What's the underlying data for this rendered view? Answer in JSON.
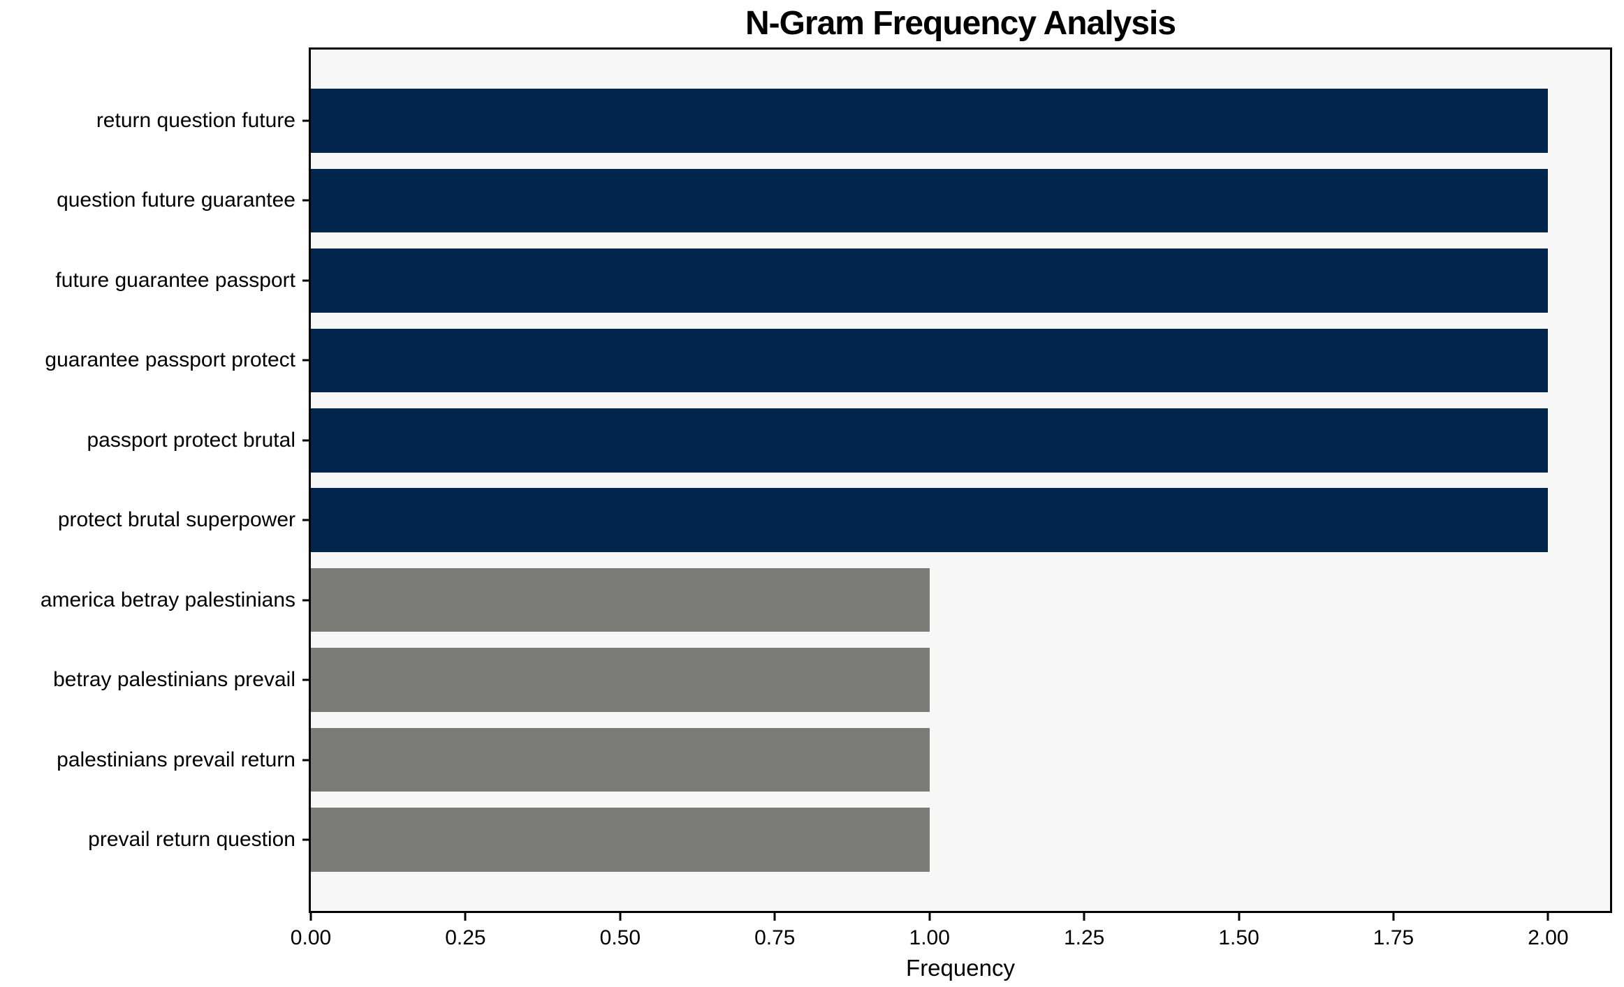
{
  "chart_data": {
    "type": "bar",
    "orientation": "horizontal",
    "title": "N-Gram Frequency Analysis",
    "xlabel": "Frequency",
    "ylabel": "",
    "categories": [
      "return question future",
      "question future guarantee",
      "future guarantee passport",
      "guarantee passport protect",
      "passport protect brutal",
      "protect brutal superpower",
      "america betray palestinians",
      "betray palestinians prevail",
      "palestinians prevail return",
      "prevail return question"
    ],
    "values": [
      2,
      2,
      2,
      2,
      2,
      2,
      1,
      1,
      1,
      1
    ],
    "bar_colors": [
      "#02254d",
      "#02254d",
      "#02254d",
      "#02254d",
      "#02254d",
      "#02254d",
      "#7b7b77",
      "#7b7b77",
      "#7b7b77",
      "#7b7b77"
    ],
    "xlim": [
      0,
      2.1
    ],
    "xticks": [
      0,
      0.25,
      0.5,
      0.75,
      1.0,
      1.25,
      1.5,
      1.75,
      2.0
    ],
    "xtick_labels": [
      "0.00",
      "0.25",
      "0.50",
      "0.75",
      "1.00",
      "1.25",
      "1.50",
      "1.75",
      "2.00"
    ],
    "grid": false,
    "legend": null,
    "colors": {
      "navy_bar": "#02254d",
      "gray_bar": "#7b7b77",
      "plot_background": "#f7f7f7",
      "figure_background": "#ffffff",
      "axis": "#000000"
    }
  }
}
